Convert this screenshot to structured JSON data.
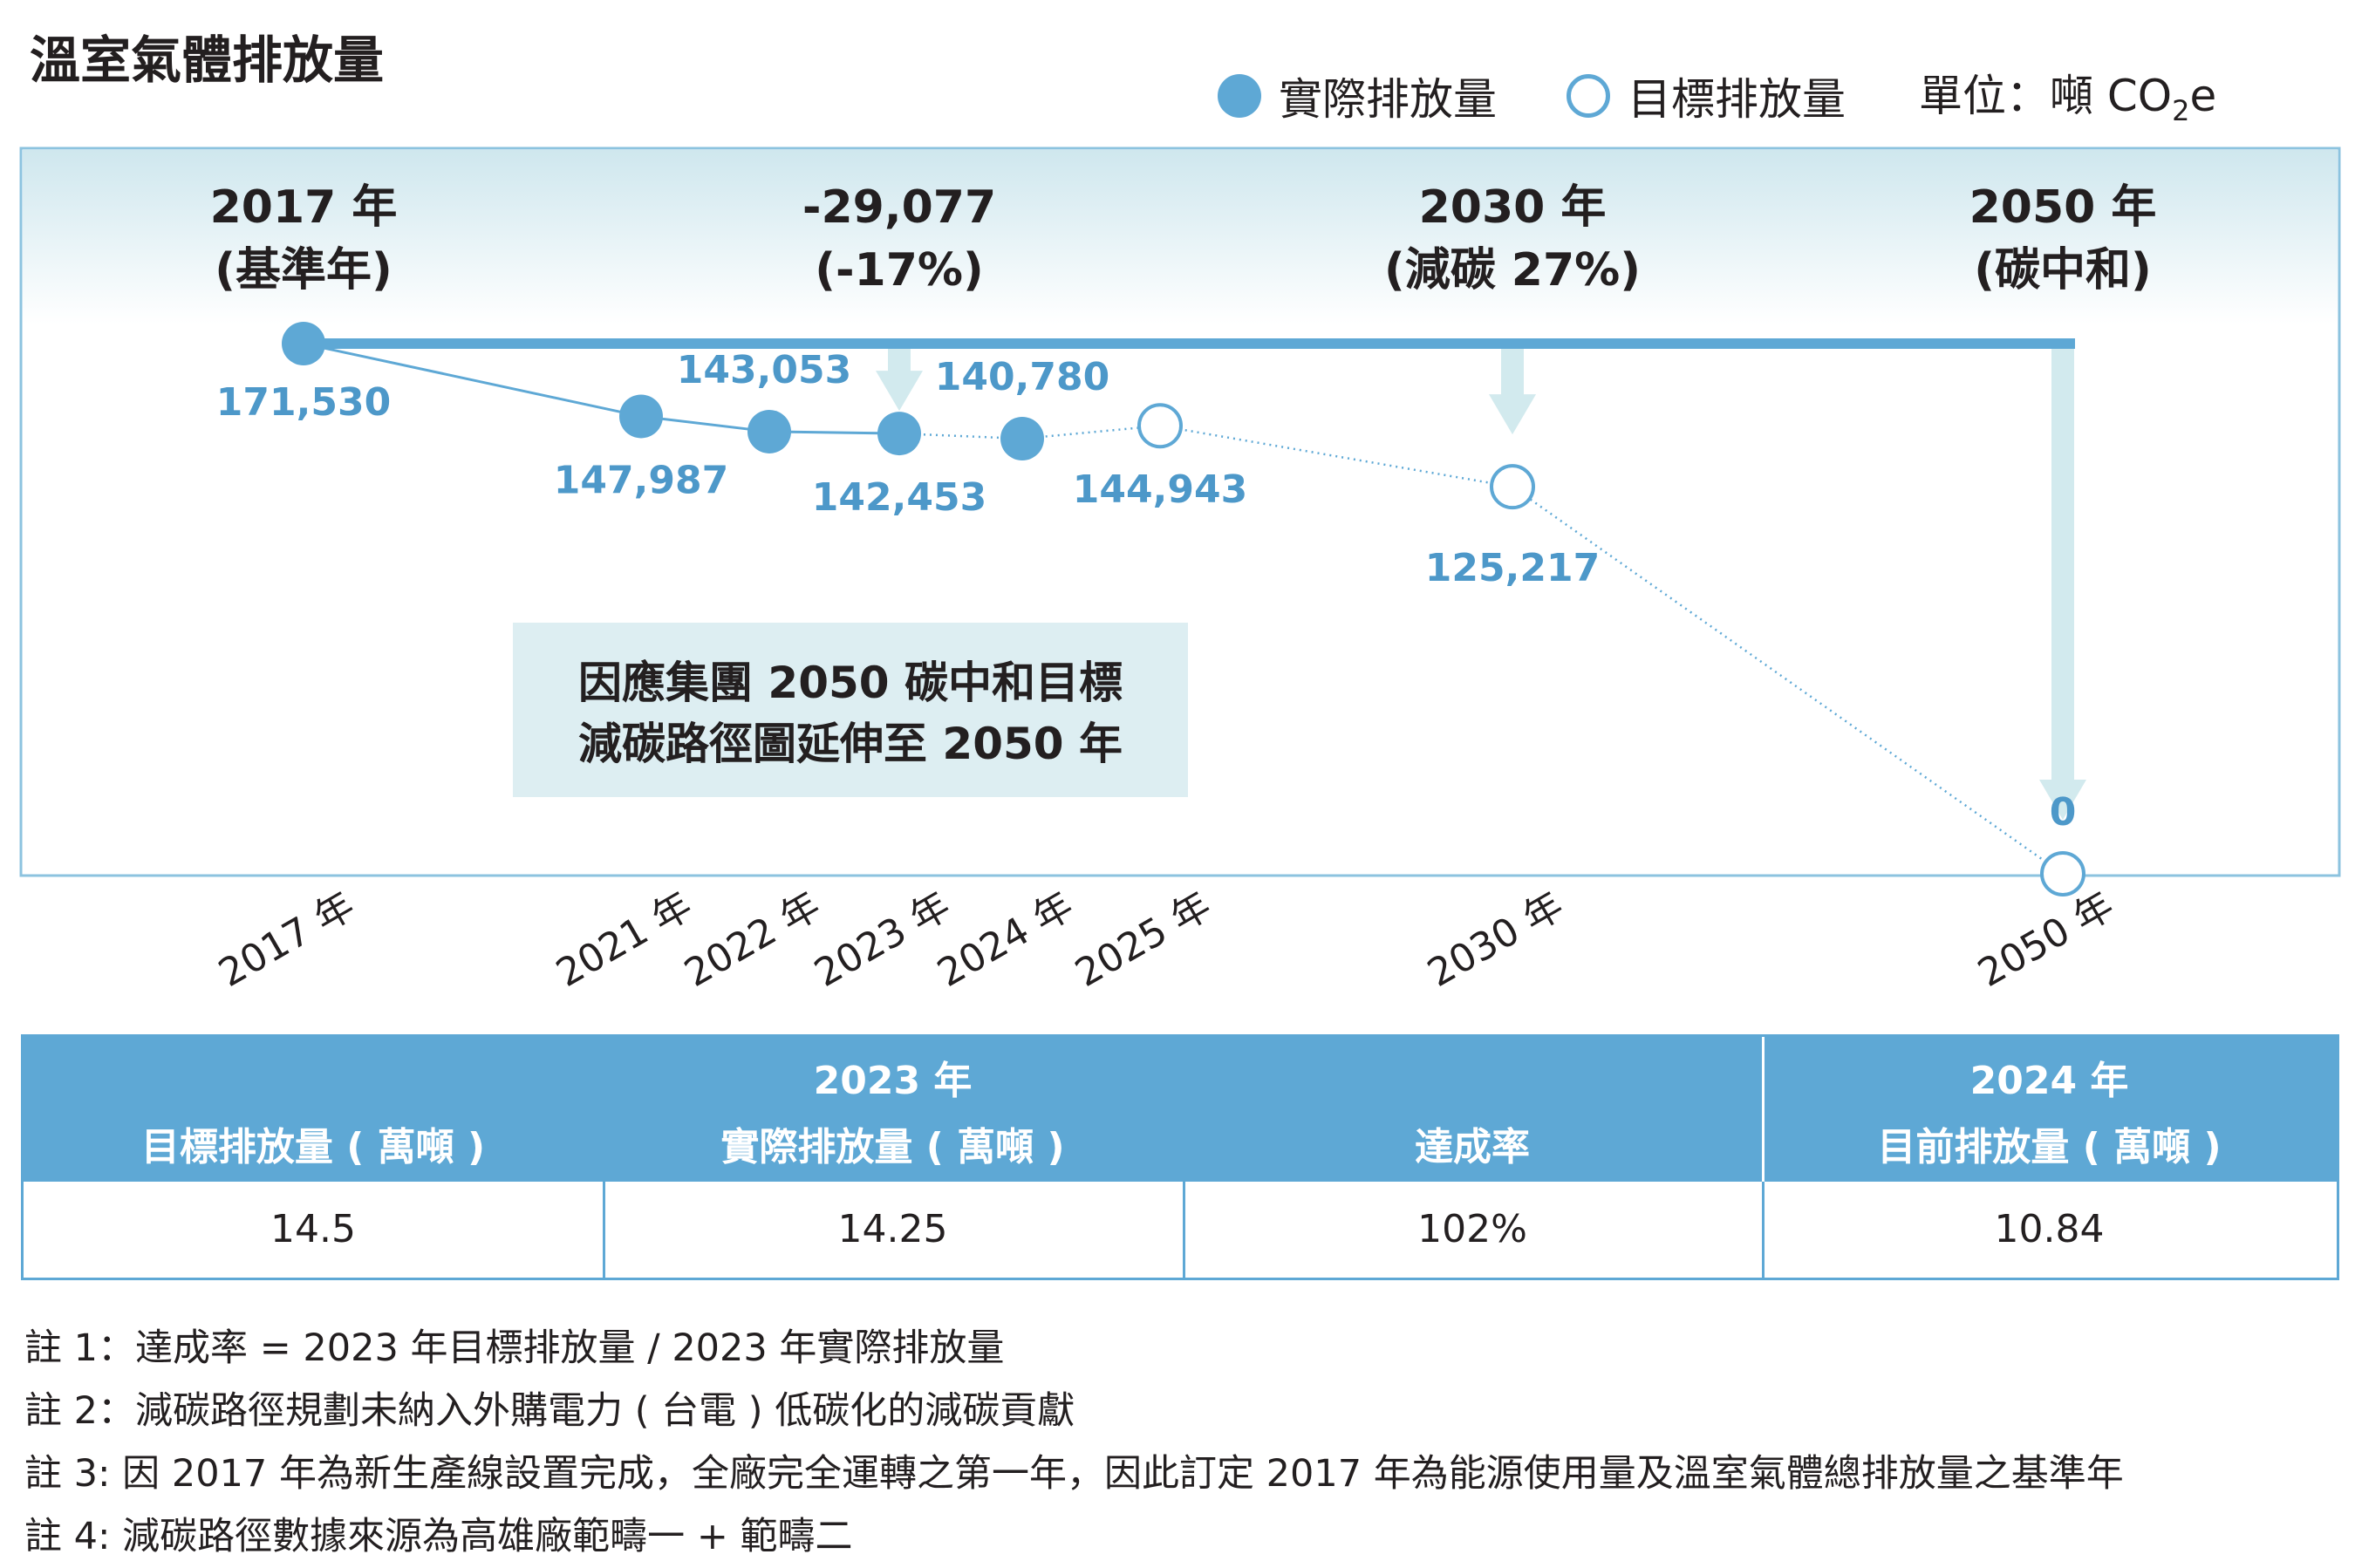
{
  "title": "溫室氣體排放量",
  "legend": {
    "actual": "實際排放量",
    "target": "目標排放量",
    "unit_prefix": "單位：噸 CO",
    "unit_sub": "2",
    "unit_suffix": "e"
  },
  "chart_data": {
    "type": "line",
    "title": "溫室氣體排放量",
    "unit": "噸 CO2e",
    "x_categories": [
      "2017 年",
      "2021 年",
      "2022 年",
      "2023 年",
      "2024 年",
      "2025 年",
      "2030 年",
      "2050 年"
    ],
    "series": [
      {
        "name": "實際排放量",
        "style": "filled",
        "points": [
          {
            "x": "2017 年",
            "y": 171530
          },
          {
            "x": "2021 年",
            "y": 147987
          },
          {
            "x": "2022 年",
            "y": 143053
          },
          {
            "x": "2023 年",
            "y": 142453
          },
          {
            "x": "2024 年",
            "y": 140780
          }
        ]
      },
      {
        "name": "目標排放量",
        "style": "hollow",
        "points": [
          {
            "x": "2025 年",
            "y": 144943
          },
          {
            "x": "2030 年",
            "y": 125217
          },
          {
            "x": "2050 年",
            "y": 0
          }
        ]
      }
    ],
    "value_labels": [
      "171,530",
      "147,987",
      "143,053",
      "142,453",
      "140,780",
      "144,943",
      "125,217",
      "0"
    ],
    "milestones": [
      {
        "year": "2023 年",
        "line1": "-29,077",
        "line2": "(-17%)"
      },
      {
        "year": "2030 年",
        "line1": "2030 年",
        "line2": "(減碳 27%)"
      },
      {
        "year": "2050 年",
        "line1": "2050 年",
        "line2": "(碳中和)"
      }
    ],
    "baseline": {
      "year": "2017 年",
      "line1": "2017 年",
      "line2": "(基準年)",
      "value": 171530
    },
    "annotation_lines": [
      "因應集團 2050 碳中和目標",
      "減碳路徑圖延伸至 2050 年"
    ],
    "colors": {
      "line": "#5ea8d5",
      "label": "#4d98c9",
      "arrow": "#d2eaee",
      "frame": "#8cc3df",
      "annotation_bg": "#ddeef2",
      "header_bg": "#5ea8d5"
    }
  },
  "table": {
    "group_2023": "2023 年",
    "group_2024": "2024 年",
    "headers": [
      "目標排放量 ( 萬噸 )",
      "實際排放量 ( 萬噸 )",
      "達成率",
      "目前排放量 ( 萬噸 )"
    ],
    "values": [
      "14.5",
      "14.25",
      "102%",
      "10.84"
    ]
  },
  "notes": [
    "註 1：達成率 = 2023 年目標排放量 / 2023 年實際排放量",
    "註 2：減碳路徑規劃未納入外購電力 ( 台電 ) 低碳化的減碳貢獻",
    "註 3: 因 2017 年為新生產線設置完成，全廠完全運轉之第一年，因此訂定 2017 年為能源使用量及溫室氣體總排放量之基準年",
    "註 4: 減碳路徑數據來源為高雄廠範疇一 + 範疇二"
  ]
}
